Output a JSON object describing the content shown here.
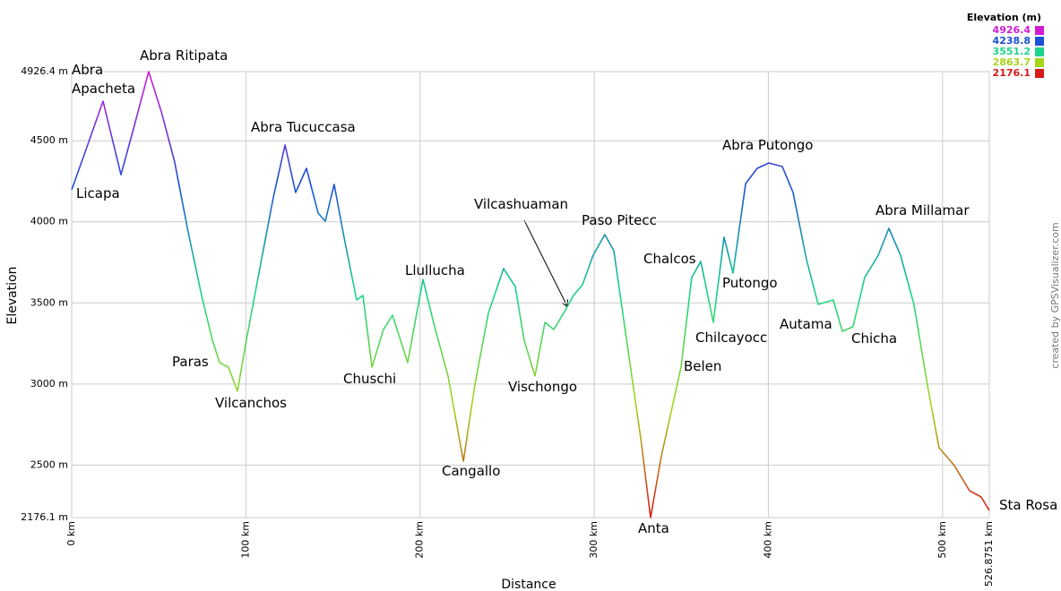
{
  "chart_data": {
    "type": "line",
    "x_label": "Distance",
    "y_label": "Elevation",
    "xlim": [
      0,
      526.8751
    ],
    "ylim": [
      2176.1,
      4926.4
    ],
    "xticks": [
      {
        "value": 0,
        "label": "0 km"
      },
      {
        "value": 100,
        "label": "100 km"
      },
      {
        "value": 200,
        "label": "200 km"
      },
      {
        "value": 300,
        "label": "300 km"
      },
      {
        "value": 400,
        "label": "400 km"
      },
      {
        "value": 500,
        "label": "500 km"
      },
      {
        "value": 526.8751,
        "label": "526.8751 km"
      }
    ],
    "yticks": [
      {
        "value": 2176.1,
        "label": "2176.1 m"
      },
      {
        "value": 2500,
        "label": "2500 m"
      },
      {
        "value": 3000,
        "label": "3000 m"
      },
      {
        "value": 3500,
        "label": "3500 m"
      },
      {
        "value": 4000,
        "label": "4000 m"
      },
      {
        "value": 4500,
        "label": "4500 m"
      },
      {
        "value": 4926.4,
        "label": "4926.4 m"
      }
    ],
    "grid": true,
    "x": [
      0,
      7.7,
      18,
      28.3,
      36,
      44.2,
      51.5,
      59,
      67,
      74.6,
      80.8,
      84.9,
      90,
      95.2,
      100.3,
      108,
      115.8,
      122.5,
      128.6,
      134.8,
      141.5,
      145.6,
      150.7,
      156.9,
      163.6,
      167.2,
      172.4,
      179,
      184.2,
      192.9,
      201.7,
      208.4,
      216.1,
      224.9,
      231.5,
      239.2,
      248,
      254.7,
      259.8,
      266,
      271.7,
      276.8,
      283,
      288.1,
      293.3,
      299.4,
      306.1,
      311.3,
      319,
      326.8,
      332.4,
      338.5,
      349.9,
      356,
      361.2,
      368.4,
      374.6,
      379.7,
      387,
      393.6,
      400.3,
      408,
      414.2,
      421.9,
      428.6,
      437.3,
      442.5,
      448.6,
      455.3,
      463.1,
      469.2,
      475.9,
      483.6,
      491.3,
      498,
      506.8,
      515.5,
      522.2,
      526.8751
    ],
    "values": [
      4198,
      4430,
      4744,
      4291,
      4595,
      4926.4,
      4678,
      4374,
      3932,
      3546,
      3270,
      3132,
      3104,
      2955,
      3270,
      3712,
      4153,
      4474,
      4181,
      4330,
      4054,
      4004,
      4231,
      3877,
      3518,
      3546,
      3104,
      3336,
      3424,
      3132,
      3645,
      3353,
      3049,
      2524,
      2994,
      3435,
      3712,
      3601,
      3270,
      3049,
      3380,
      3336,
      3446,
      3546,
      3612,
      3794,
      3921,
      3822,
      3242,
      2662,
      2176.1,
      2552,
      3104,
      3656,
      3756,
      3380,
      3905,
      3684,
      4236,
      4330,
      4363,
      4341,
      4181,
      3767,
      3491,
      3518,
      3325,
      3353,
      3656,
      3794,
      3960,
      3794,
      3491,
      2994,
      2607,
      2497,
      2342,
      2303,
      2220
    ],
    "legend": {
      "title": "Elevation (m)",
      "position": "top-right",
      "entries": [
        {
          "value": 4926.4,
          "color": "#d21bd2"
        },
        {
          "value": 4238.8,
          "color": "#1a4fd6"
        },
        {
          "value": 3551.2,
          "color": "#1ad68a"
        },
        {
          "value": 2863.7,
          "color": "#a6d61a"
        },
        {
          "value": 2176.1,
          "color": "#d61a1a"
        }
      ]
    },
    "annotations": [
      "Abra Apacheta",
      "Abra Ritipata",
      "Licapa",
      "Abra Tucuccasa",
      "Paras",
      "Vilcanchos",
      "Chuschi",
      "Llullucha",
      "Cangallo",
      "Vischongo",
      "Vilcashuaman",
      "Paso Pitecc",
      "Anta",
      "Chalcos",
      "Belen",
      "Putongo",
      "Chilcayocc",
      "Abra Putongo",
      "Autama",
      "Chicha",
      "Abra Millamar",
      "Sta Rosa"
    ],
    "credit": "created by GPSVisualizer.com"
  }
}
